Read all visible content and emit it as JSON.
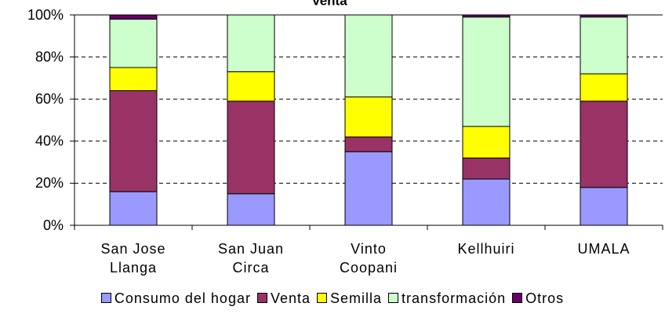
{
  "chart_data": {
    "type": "stacked_bar",
    "title": "Venta",
    "categories": [
      "San Jose\nLlanga",
      "San Juan\nCirca",
      "Vinto\nCoopani",
      "Kellhuiri",
      "UMALA"
    ],
    "series": [
      {
        "name": "Consumo del hogar",
        "color": "#9999ff",
        "values": [
          16,
          15,
          35,
          22,
          18
        ]
      },
      {
        "name": "Venta",
        "color": "#993366",
        "values": [
          48,
          44,
          7,
          10,
          41
        ]
      },
      {
        "name": "Semilla",
        "color": "#ffff00",
        "values": [
          11,
          14,
          19,
          15,
          13
        ]
      },
      {
        "name": "transformación",
        "color": "#ccffcc",
        "values": [
          23,
          27,
          39,
          52,
          27
        ]
      },
      {
        "name": "Otros",
        "color": "#660066",
        "values": [
          2,
          0,
          0,
          1,
          1
        ]
      }
    ],
    "ylim": [
      0,
      100
    ],
    "yticks": [
      {
        "value": 0,
        "label": "0%"
      },
      {
        "value": 20,
        "label": "20%"
      },
      {
        "value": 40,
        "label": "40%"
      },
      {
        "value": 60,
        "label": "60%"
      },
      {
        "value": 80,
        "label": "80%"
      },
      {
        "value": 100,
        "label": "100%"
      }
    ],
    "grid": true
  }
}
